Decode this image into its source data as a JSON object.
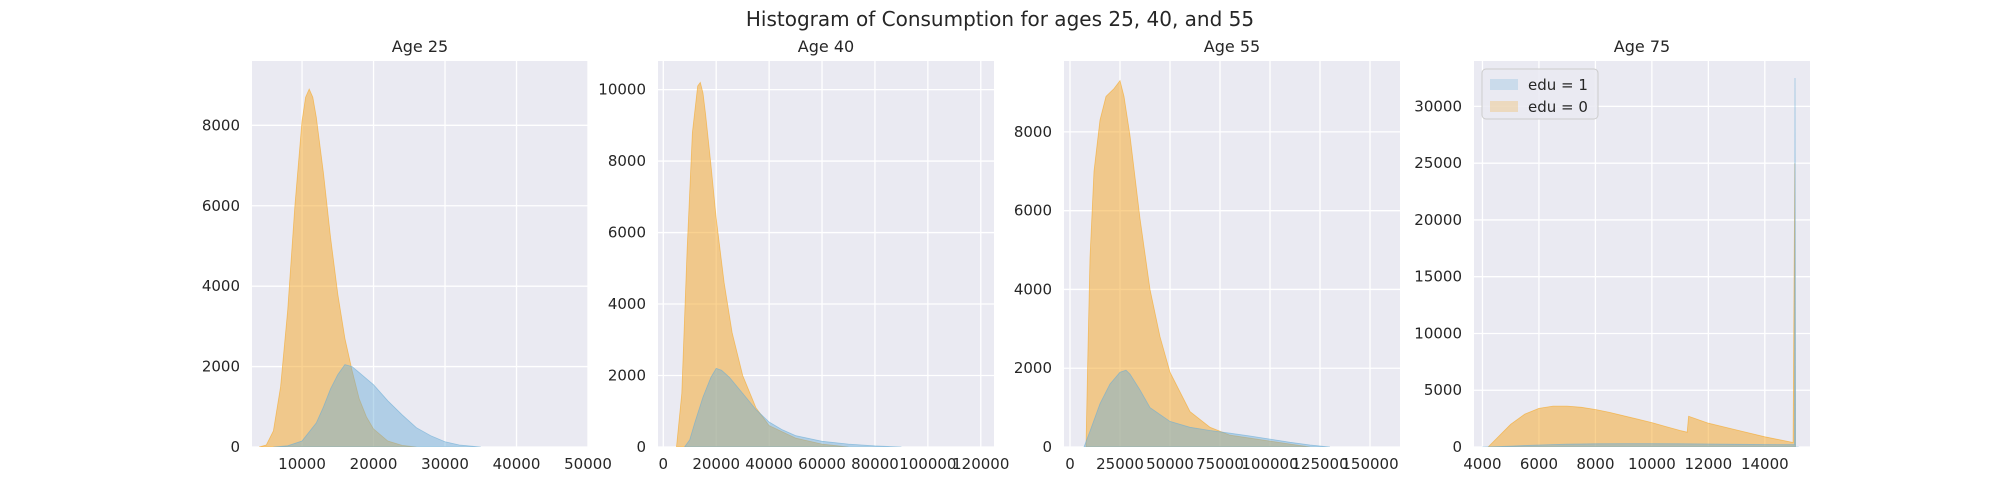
{
  "figure": {
    "suptitle": "Histogram of Consumption for ages 25, 40, and 55"
  },
  "colors": {
    "background": "#ffffff",
    "panel": "#eaeaf2",
    "grid": "#ffffff",
    "text": "#262626",
    "edu1": "#6baed6",
    "edu0": "#f5a623"
  },
  "chart_data": [
    {
      "type": "area",
      "title": "Age 25",
      "xlim": [
        3000,
        50000
      ],
      "ylim": [
        0,
        9600
      ],
      "xticks": [
        10000,
        20000,
        30000,
        40000,
        50000
      ],
      "yticks": [
        0,
        2000,
        4000,
        6000,
        8000
      ],
      "grid": true,
      "series": [
        {
          "name": "edu = 1",
          "color_key": "edu1",
          "x": [
            6000,
            8000,
            10000,
            12000,
            13000,
            14000,
            15000,
            16000,
            17000,
            18000,
            20000,
            22000,
            24000,
            26000,
            28000,
            30000,
            32000,
            35000
          ],
          "y": [
            0,
            30,
            150,
            600,
            1000,
            1450,
            1800,
            2050,
            2000,
            1850,
            1550,
            1150,
            800,
            480,
            280,
            130,
            50,
            0
          ]
        },
        {
          "name": "edu = 0",
          "color_key": "edu0",
          "x": [
            4000,
            5000,
            6000,
            7000,
            8000,
            9000,
            10000,
            10500,
            11000,
            11500,
            12000,
            13000,
            14000,
            15000,
            16000,
            17000,
            18000,
            19000,
            20000,
            22000,
            24000,
            26000
          ],
          "y": [
            0,
            50,
            400,
            1500,
            3400,
            6000,
            8100,
            8700,
            8900,
            8700,
            8200,
            6800,
            5200,
            3800,
            2700,
            1900,
            1200,
            750,
            450,
            150,
            40,
            0
          ]
        }
      ]
    },
    {
      "type": "area",
      "title": "Age 40",
      "xlim": [
        -2000,
        125000
      ],
      "ylim": [
        0,
        10800
      ],
      "xticks": [
        0,
        20000,
        40000,
        60000,
        80000,
        100000,
        120000
      ],
      "yticks": [
        0,
        2000,
        4000,
        6000,
        8000,
        10000
      ],
      "grid": true,
      "series": [
        {
          "name": "edu = 1",
          "color_key": "edu1",
          "x": [
            8000,
            10000,
            12000,
            15000,
            18000,
            20000,
            22000,
            25000,
            30000,
            35000,
            40000,
            45000,
            50000,
            60000,
            70000,
            80000,
            90000
          ],
          "y": [
            0,
            200,
            700,
            1400,
            1950,
            2200,
            2150,
            1950,
            1500,
            1050,
            700,
            480,
            320,
            160,
            80,
            30,
            0
          ]
        },
        {
          "name": "edu = 0",
          "color_key": "edu0",
          "x": [
            5000,
            7000,
            9000,
            11000,
            13000,
            14000,
            15000,
            16000,
            18000,
            20000,
            23000,
            26000,
            30000,
            35000,
            40000,
            50000,
            60000,
            70000
          ],
          "y": [
            0,
            1500,
            5500,
            8800,
            10100,
            10200,
            9900,
            9300,
            7900,
            6400,
            4600,
            3200,
            2000,
            1100,
            600,
            250,
            80,
            0
          ]
        }
      ]
    },
    {
      "type": "area",
      "title": "Age 55",
      "xlim": [
        -3000,
        165000
      ],
      "ylim": [
        0,
        9800
      ],
      "xticks": [
        0,
        25000,
        50000,
        75000,
        100000,
        125000,
        150000
      ],
      "yticks": [
        0,
        2000,
        4000,
        6000,
        8000
      ],
      "grid": true,
      "series": [
        {
          "name": "edu = 1",
          "color_key": "edu1",
          "x": [
            7000,
            10000,
            15000,
            20000,
            25000,
            28000,
            30000,
            35000,
            40000,
            50000,
            60000,
            70000,
            80000,
            90000,
            100000,
            110000,
            120000,
            130000
          ],
          "y": [
            0,
            400,
            1100,
            1600,
            1900,
            1950,
            1850,
            1450,
            1000,
            650,
            500,
            420,
            350,
            280,
            200,
            120,
            50,
            0
          ]
        },
        {
          "name": "edu = 0",
          "color_key": "edu0",
          "x": [
            8000,
            9000,
            10000,
            12000,
            15000,
            18000,
            20000,
            22000,
            25000,
            27000,
            30000,
            35000,
            40000,
            45000,
            50000,
            60000,
            70000,
            80000,
            100000,
            120000
          ],
          "y": [
            0,
            2500,
            4800,
            7000,
            8300,
            8900,
            9000,
            9100,
            9300,
            8900,
            7900,
            5800,
            4000,
            2800,
            1900,
            900,
            500,
            300,
            150,
            0
          ]
        }
      ]
    },
    {
      "type": "area",
      "title": "Age 75",
      "xlim": [
        3700,
        15600
      ],
      "ylim": [
        0,
        34000
      ],
      "xticks": [
        4000,
        6000,
        8000,
        10000,
        12000,
        14000
      ],
      "yticks": [
        0,
        5000,
        10000,
        15000,
        20000,
        25000,
        30000
      ],
      "grid": true,
      "legend": "upper-left",
      "series": [
        {
          "name": "edu = 1",
          "color_key": "edu1",
          "x": [
            4000,
            5000,
            6000,
            7000,
            8000,
            9000,
            10000,
            11000,
            12000,
            13000,
            14000,
            15050,
            15070,
            15090,
            15200
          ],
          "y": [
            0,
            80,
            180,
            250,
            280,
            290,
            290,
            280,
            260,
            240,
            220,
            200,
            32500,
            0,
            0
          ]
        },
        {
          "name": "edu = 0",
          "color_key": "edu0",
          "x": [
            4200,
            5000,
            5500,
            6000,
            6500,
            7000,
            7500,
            8000,
            8500,
            9000,
            9500,
            10000,
            10500,
            11000,
            11250,
            11300,
            12000,
            13000,
            14000,
            15000,
            15060,
            15080,
            15100
          ],
          "y": [
            0,
            2000,
            2900,
            3400,
            3600,
            3600,
            3500,
            3300,
            3050,
            2750,
            2450,
            2150,
            1800,
            1450,
            1300,
            2700,
            2100,
            1500,
            900,
            400,
            25000,
            0,
            0
          ]
        }
      ]
    }
  ]
}
